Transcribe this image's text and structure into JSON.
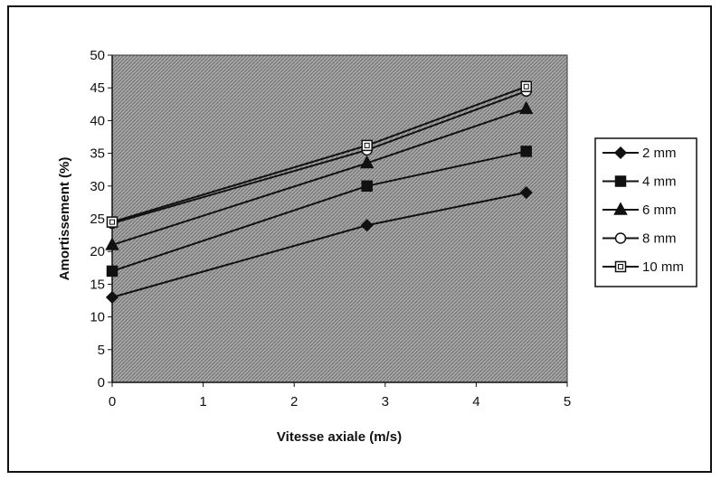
{
  "chart_data": {
    "type": "line",
    "xlabel": "Vitesse axiale (m/s)",
    "ylabel": "Amortissement (%)",
    "xlim": [
      0,
      5
    ],
    "ylim": [
      0,
      50
    ],
    "xticks": [
      "0",
      "1",
      "2",
      "3",
      "4",
      "5"
    ],
    "yticks": [
      "0",
      "5",
      "10",
      "15",
      "20",
      "25",
      "30",
      "35",
      "40",
      "45",
      "50"
    ],
    "x": [
      0,
      2.8,
      4.55
    ],
    "grid": false,
    "legend_position": "right",
    "plot_background": "#9a9a9a",
    "series": [
      {
        "name": "2 mm",
        "marker": "diamond",
        "values": [
          13,
          24,
          29
        ]
      },
      {
        "name": "4 mm",
        "marker": "square",
        "values": [
          17,
          30,
          35.3
        ]
      },
      {
        "name": "6 mm",
        "marker": "triangle",
        "values": [
          21,
          33.5,
          41.8
        ]
      },
      {
        "name": "8 mm",
        "marker": "open-circle",
        "values": [
          24.3,
          35.5,
          44.5
        ]
      },
      {
        "name": "10 mm",
        "marker": "open-square",
        "values": [
          24.5,
          36.2,
          45.2
        ]
      }
    ]
  }
}
